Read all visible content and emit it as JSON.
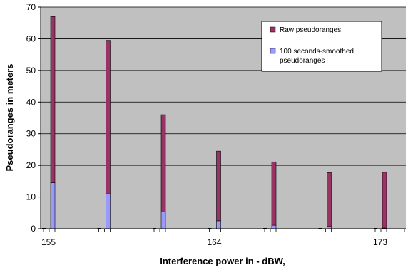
{
  "chart_data": {
    "type": "bar",
    "stacked": true,
    "xlabel": "Interference power in - dBW,",
    "ylabel": "Pseudoranges in meters",
    "ylim": [
      0,
      70
    ],
    "yticks": [
      0,
      10,
      20,
      30,
      40,
      50,
      60,
      70
    ],
    "x_tick_labels": [
      "155",
      "164",
      "173"
    ],
    "grid": true,
    "legend_position": "top-right",
    "categories": [
      "155",
      "",
      "",
      "164",
      "",
      "",
      "173"
    ],
    "series": [
      {
        "name": "100 seconds-smoothed pseudoranges",
        "color": "#9999ff",
        "values": [
          14.5,
          11,
          5.3,
          2.5,
          1.1,
          0.7,
          0.2
        ]
      },
      {
        "name": "Raw pseudoranges",
        "color": "#993366",
        "values": [
          52.5,
          48.5,
          30.7,
          22.0,
          20.0,
          17.0,
          17.6
        ]
      }
    ],
    "colors": {
      "plot_background": "#c0c0c0",
      "gridline": "#000000"
    }
  }
}
